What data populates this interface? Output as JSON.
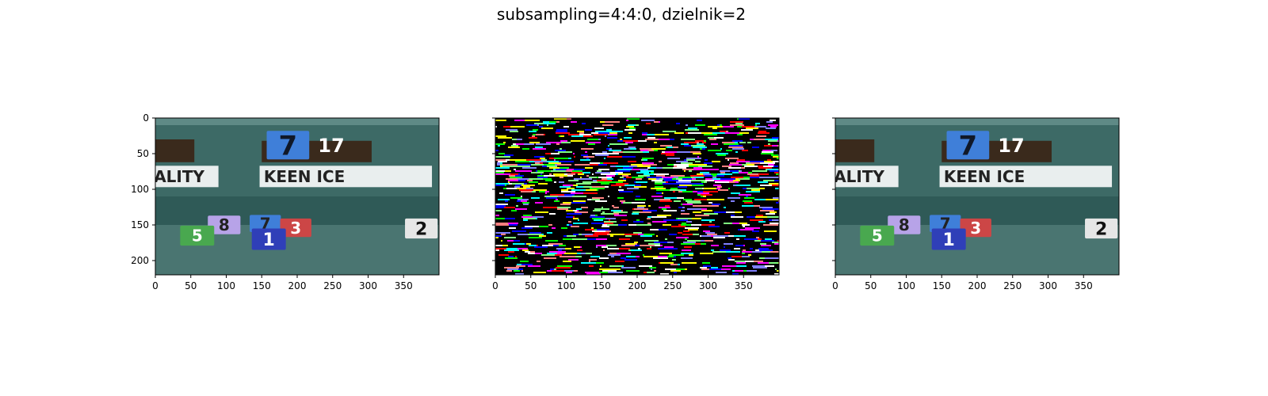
{
  "figure": {
    "suptitle": "subsampling=4:4:0, dzielnik=2"
  },
  "chart_data": [
    {
      "type": "image",
      "panel": "left",
      "content": "original video frame",
      "xlim": [
        0,
        400
      ],
      "ylim": [
        220,
        0
      ],
      "xticks": [
        "0",
        "50",
        "100",
        "150",
        "200",
        "250",
        "300",
        "350"
      ],
      "xtick_values": [
        0,
        50,
        100,
        150,
        200,
        250,
        300,
        350
      ],
      "yticks": [
        "0",
        "50",
        "100",
        "150",
        "200"
      ],
      "ytick_values": [
        0,
        50,
        100,
        150,
        200
      ],
      "show_ytick_labels": true,
      "overlay_texts": [
        "7",
        "17",
        "ALITY",
        "KEEN ICE",
        "8",
        "7",
        "3",
        "5",
        "1",
        "2"
      ]
    },
    {
      "type": "image",
      "panel": "middle",
      "content": "difference / noise map",
      "xlim": [
        0,
        400
      ],
      "ylim": [
        220,
        0
      ],
      "xticks": [
        "0",
        "50",
        "100",
        "150",
        "200",
        "250",
        "300",
        "350"
      ],
      "xtick_values": [
        0,
        50,
        100,
        150,
        200,
        250,
        300,
        350
      ],
      "ytick_values": [
        0,
        50,
        100,
        150,
        200
      ],
      "show_ytick_labels": false
    },
    {
      "type": "image",
      "panel": "right",
      "content": "reconstructed video frame",
      "xlim": [
        0,
        400
      ],
      "ylim": [
        220,
        0
      ],
      "xticks": [
        "0",
        "50",
        "100",
        "150",
        "200",
        "250",
        "300",
        "350"
      ],
      "xtick_values": [
        0,
        50,
        100,
        150,
        200,
        250,
        300,
        350
      ],
      "ytick_values": [
        0,
        50,
        100,
        150,
        200
      ],
      "show_ytick_labels": false,
      "overlay_texts": [
        "7",
        "17",
        "ALITY",
        "KEEN ICE",
        "8",
        "7",
        "3",
        "5",
        "1",
        "2"
      ]
    }
  ],
  "colors": {
    "background_teal": "#3d6a66",
    "banner_white": "#e9eeee",
    "box_blue": "#3f7fd9",
    "box_dark_blue": "#2f3fb8",
    "box_purple": "#b7a3e8",
    "box_red": "#cc4646",
    "box_green": "#49a84f",
    "box_light": "#e6e6e6",
    "brown_bar": "#3a2a1c"
  }
}
